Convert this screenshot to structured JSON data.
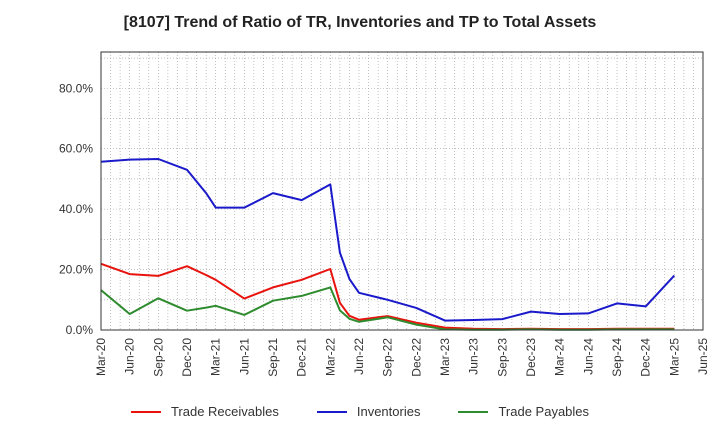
{
  "chart_data": {
    "type": "line",
    "title": "[8107]  Trend of Ratio of TR, Inventories and TP to Total Assets",
    "xlabel": "",
    "ylabel": "",
    "x_ticks": [
      "Mar-20",
      "Jun-20",
      "Sep-20",
      "Dec-20",
      "Mar-21",
      "Jun-21",
      "Sep-21",
      "Dec-21",
      "Mar-22",
      "Jun-22",
      "Sep-22",
      "Dec-22",
      "Mar-23",
      "Jun-23",
      "Sep-23",
      "Dec-23",
      "Mar-24",
      "Jun-24",
      "Sep-24",
      "Dec-24",
      "Mar-25",
      "Jun-25"
    ],
    "y_ticks": [
      "0.0%",
      "20.0%",
      "40.0%",
      "60.0%",
      "80.0%"
    ],
    "y_tick_values": [
      0,
      20,
      40,
      60,
      80
    ],
    "ylim": [
      0,
      92
    ],
    "grid": true,
    "legend_position": "bottom",
    "x_month_index": [
      0,
      1,
      2,
      3,
      4,
      5,
      6,
      7,
      8,
      9,
      10,
      11,
      12,
      13,
      14,
      15,
      16,
      17,
      18,
      19,
      20,
      21,
      22,
      23,
      24,
      25,
      26,
      27,
      28,
      29,
      30,
      31,
      32,
      33,
      34,
      35,
      36,
      37,
      38,
      39,
      40,
      41,
      42,
      43,
      44,
      45,
      46,
      47,
      48,
      49,
      50,
      51,
      52,
      53,
      54,
      55,
      56,
      57,
      58,
      59,
      60
    ],
    "x": [
      "Mar-20",
      "Jun-20",
      "Sep-20",
      "Dec-20",
      "Feb-21",
      "Mar-21",
      "Jun-21",
      "Sep-21",
      "Dec-21",
      "Mar-22",
      "Apr-22",
      "May-22",
      "Jun-22",
      "Sep-22",
      "Dec-22",
      "Mar-23",
      "Jun-23",
      "Sep-23",
      "Dec-23",
      "Mar-24",
      "Jun-24",
      "Sep-24",
      "Dec-24",
      "Mar-25"
    ],
    "series": [
      {
        "name": "Trade Receivables",
        "color": "#e8130d",
        "values": [
          21.9,
          18.5,
          17.9,
          21.1,
          18.2,
          16.6,
          10.4,
          14.1,
          16.6,
          20.2,
          9.0,
          4.7,
          3.4,
          4.6,
          2.4,
          0.8,
          0.4,
          0.3,
          0.4,
          0.3,
          0.3,
          0.4,
          0.4,
          0.4
        ]
      },
      {
        "name": "Inventories",
        "color": "#1a1acb",
        "values": [
          55.7,
          56.4,
          56.6,
          53.0,
          45.3,
          40.5,
          40.5,
          45.3,
          43.0,
          48.2,
          25.6,
          16.9,
          12.3,
          10.0,
          7.3,
          3.1,
          3.3,
          3.6,
          6.1,
          5.3,
          5.5,
          8.8,
          7.8,
          18.0
        ]
      },
      {
        "name": "Trade Payables",
        "color": "#2e8b2e",
        "values": [
          13.2,
          5.3,
          10.5,
          6.4,
          7.4,
          8.0,
          5.0,
          9.7,
          11.3,
          14.1,
          6.5,
          3.7,
          2.7,
          4.2,
          1.8,
          0.2,
          0.1,
          0.1,
          0.2,
          0.1,
          0.1,
          0.2,
          0.2,
          0.2
        ]
      }
    ]
  },
  "legend": {
    "items": [
      "Trade Receivables",
      "Inventories",
      "Trade Payables"
    ],
    "colors": [
      "#e8130d",
      "#1a1acb",
      "#2e8b2e"
    ]
  }
}
